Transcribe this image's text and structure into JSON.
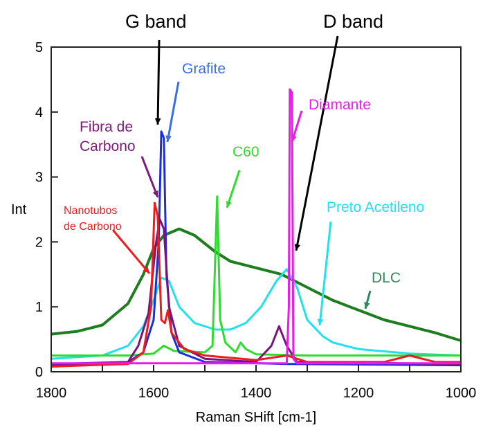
{
  "chart_data": {
    "type": "line",
    "xlabel": "Raman SHift [cm-1]",
    "ylabel": "Int",
    "xlim": [
      1800,
      1000
    ],
    "ylim": [
      0,
      5
    ],
    "x_reversed": true,
    "grid": false,
    "xticks": [
      "1800",
      "1600",
      "1400",
      "1200",
      "1000"
    ],
    "xminor": [
      1700,
      1500,
      1300,
      1100
    ],
    "yticks": [
      "0",
      "1",
      "2",
      "3",
      "4",
      "5"
    ],
    "annotations": {
      "g_band": "G band",
      "d_band": "D band",
      "grafite": "Grafite",
      "diamante": "Diamante",
      "fibra_1": "Fibra de",
      "fibra_2": "Carbono",
      "c60": "C60",
      "nanotubos_1": "Nanotubos",
      "nanotubos_2": "de Carbono",
      "preto": "Preto Acetileno",
      "dlc": "DLC"
    },
    "series": [
      {
        "name": "DLC",
        "color": "#1e7d1e",
        "points": [
          [
            1800,
            0.58
          ],
          [
            1750,
            0.62
          ],
          [
            1700,
            0.72
          ],
          [
            1650,
            1.05
          ],
          [
            1620,
            1.5
          ],
          [
            1600,
            1.9
          ],
          [
            1580,
            2.1
          ],
          [
            1550,
            2.2
          ],
          [
            1520,
            2.1
          ],
          [
            1480,
            1.85
          ],
          [
            1450,
            1.7
          ],
          [
            1400,
            1.6
          ],
          [
            1350,
            1.5
          ],
          [
            1300,
            1.3
          ],
          [
            1250,
            1.1
          ],
          [
            1200,
            0.95
          ],
          [
            1150,
            0.8
          ],
          [
            1100,
            0.7
          ],
          [
            1050,
            0.6
          ],
          [
            1000,
            0.48
          ]
        ]
      },
      {
        "name": "Preto Acetileno",
        "color": "#22e0ee",
        "points": [
          [
            1800,
            0.2
          ],
          [
            1700,
            0.25
          ],
          [
            1650,
            0.4
          ],
          [
            1620,
            0.7
          ],
          [
            1600,
            1.1
          ],
          [
            1585,
            1.45
          ],
          [
            1570,
            1.4
          ],
          [
            1550,
            1.0
          ],
          [
            1520,
            0.75
          ],
          [
            1480,
            0.65
          ],
          [
            1450,
            0.65
          ],
          [
            1420,
            0.75
          ],
          [
            1390,
            1.0
          ],
          [
            1360,
            1.4
          ],
          [
            1340,
            1.58
          ],
          [
            1320,
            1.3
          ],
          [
            1300,
            0.8
          ],
          [
            1270,
            0.55
          ],
          [
            1250,
            0.45
          ],
          [
            1200,
            0.35
          ],
          [
            1100,
            0.28
          ],
          [
            1000,
            0.25
          ]
        ]
      },
      {
        "name": "C60",
        "color": "#2edc2e",
        "points": [
          [
            1800,
            0.25
          ],
          [
            1650,
            0.25
          ],
          [
            1600,
            0.28
          ],
          [
            1580,
            0.4
          ],
          [
            1560,
            0.32
          ],
          [
            1500,
            0.3
          ],
          [
            1485,
            0.4
          ],
          [
            1476,
            2.7
          ],
          [
            1470,
            0.8
          ],
          [
            1460,
            0.45
          ],
          [
            1440,
            0.3
          ],
          [
            1430,
            0.45
          ],
          [
            1420,
            0.35
          ],
          [
            1400,
            0.27
          ],
          [
            1300,
            0.25
          ],
          [
            1000,
            0.25
          ]
        ]
      },
      {
        "name": "Grafite",
        "color": "#1a2ee0",
        "points": [
          [
            1800,
            0.12
          ],
          [
            1650,
            0.15
          ],
          [
            1620,
            0.3
          ],
          [
            1600,
            0.8
          ],
          [
            1590,
            2.0
          ],
          [
            1585,
            3.7
          ],
          [
            1580,
            3.6
          ],
          [
            1575,
            1.5
          ],
          [
            1565,
            0.6
          ],
          [
            1550,
            0.3
          ],
          [
            1500,
            0.15
          ],
          [
            1340,
            0.12
          ],
          [
            1000,
            0.1
          ]
        ]
      },
      {
        "name": "Fibra de Carbono",
        "color": "#7a147a",
        "points": [
          [
            1800,
            0.1
          ],
          [
            1650,
            0.15
          ],
          [
            1630,
            0.4
          ],
          [
            1610,
            0.9
          ],
          [
            1595,
            2.0
          ],
          [
            1588,
            2.35
          ],
          [
            1580,
            2.2
          ],
          [
            1570,
            1.0
          ],
          [
            1550,
            0.4
          ],
          [
            1500,
            0.2
          ],
          [
            1400,
            0.15
          ],
          [
            1370,
            0.4
          ],
          [
            1355,
            0.7
          ],
          [
            1340,
            0.4
          ],
          [
            1320,
            0.15
          ],
          [
            1000,
            0.12
          ]
        ]
      },
      {
        "name": "Nanotubos de Carbono",
        "color": "#ee1c1c",
        "points": [
          [
            1800,
            0.08
          ],
          [
            1650,
            0.12
          ],
          [
            1620,
            0.3
          ],
          [
            1605,
            1.0
          ],
          [
            1598,
            2.6
          ],
          [
            1592,
            2.4
          ],
          [
            1585,
            0.8
          ],
          [
            1578,
            0.75
          ],
          [
            1572,
            0.95
          ],
          [
            1565,
            0.6
          ],
          [
            1540,
            0.35
          ],
          [
            1500,
            0.25
          ],
          [
            1400,
            0.18
          ],
          [
            1340,
            0.25
          ],
          [
            1300,
            0.15
          ],
          [
            1150,
            0.15
          ],
          [
            1100,
            0.25
          ],
          [
            1050,
            0.15
          ],
          [
            1000,
            0.15
          ]
        ]
      },
      {
        "name": "Diamante",
        "color": "#ee18ee",
        "points": [
          [
            1800,
            0.13
          ],
          [
            1340,
            0.13
          ],
          [
            1336,
            1.0
          ],
          [
            1334,
            4.35
          ],
          [
            1330,
            4.3
          ],
          [
            1327,
            0.2
          ],
          [
            1320,
            0.13
          ],
          [
            1000,
            0.13
          ]
        ]
      }
    ]
  }
}
